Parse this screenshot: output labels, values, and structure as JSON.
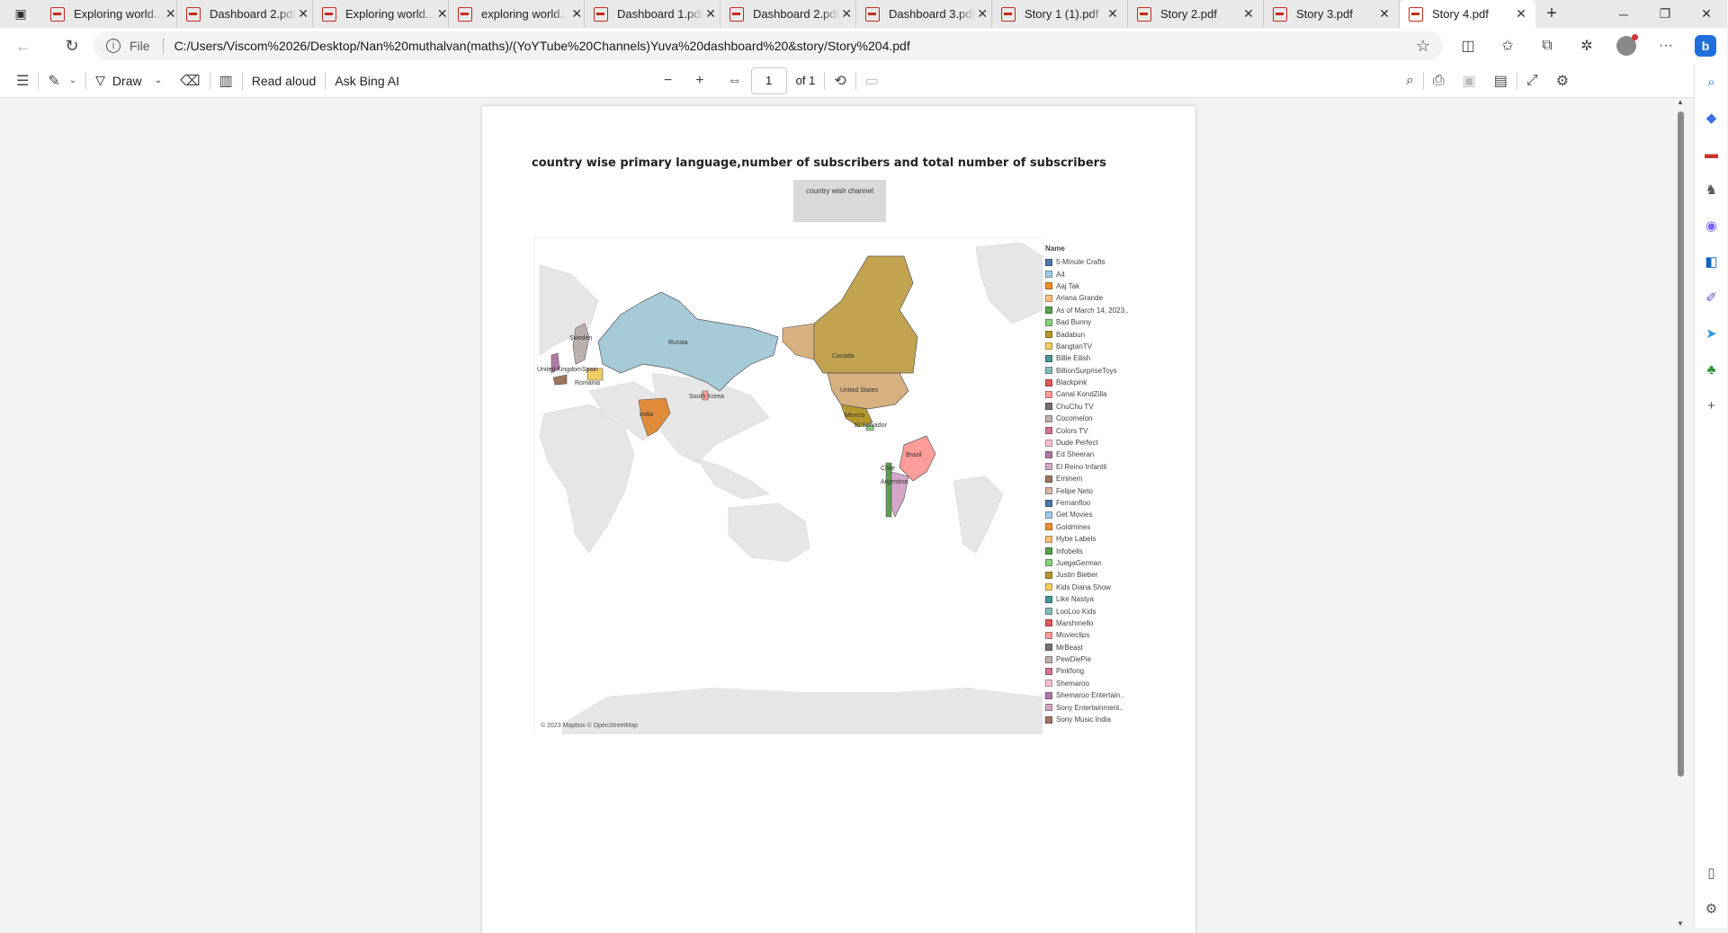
{
  "tabs": [
    {
      "title": "Exploring world..."
    },
    {
      "title": "Dashboard 2.pdf"
    },
    {
      "title": "Exploring world..."
    },
    {
      "title": "exploring world..."
    },
    {
      "title": "Dashboard 1.pdf"
    },
    {
      "title": "Dashboard 2.pdf"
    },
    {
      "title": "Dashboard 3.pdf"
    },
    {
      "title": "Story 1 (1).pdf"
    },
    {
      "title": "Story 2.pdf"
    },
    {
      "title": "Story 3.pdf"
    },
    {
      "title": "Story 4.pdf"
    }
  ],
  "address": {
    "scheme": "File",
    "url": "C:/Users/Viscom%2026/Desktop/Nan%20muthalvan(maths)/(YoYTube%20Channels)Yuva%20dashboard%20&story/Story%204.pdf"
  },
  "pdf_toolbar": {
    "draw": "Draw",
    "read_aloud": "Read aloud",
    "ask_ai": "Ask Bing AI",
    "page_current": "1",
    "page_total": "of 1"
  },
  "chart": {
    "title": "country wise primary language,number of subscribers and total number of subscribers",
    "filter_label": "country wish channel",
    "attribution": "© 2023 Mapbox © OpenStreetMap",
    "legend_title": "Name"
  },
  "chart_data": {
    "type": "map",
    "region_labels": [
      "Russia",
      "Sweden",
      "United Kingdom",
      "Spain",
      "Romania",
      "India",
      "South Korea",
      "Canada",
      "United States",
      "Mexico",
      "El Salvador",
      "Brazil",
      "Chile",
      "Argentina"
    ],
    "legend": [
      {
        "name": "5-Minute Crafts",
        "color": "#4e79a7"
      },
      {
        "name": "A4",
        "color": "#a0cbe8"
      },
      {
        "name": "Aaj Tak",
        "color": "#f28e2b"
      },
      {
        "name": "Ariana Grande",
        "color": "#ffbe7d"
      },
      {
        "name": "As of March 14, 2023..",
        "color": "#59a14f"
      },
      {
        "name": "Bad Bunny",
        "color": "#8cd17d"
      },
      {
        "name": "Badabun",
        "color": "#b6992d"
      },
      {
        "name": "BangtanTV",
        "color": "#f1ce63"
      },
      {
        "name": "Billie Eilish",
        "color": "#499894"
      },
      {
        "name": "BillionSurpriseToys",
        "color": "#86bcb6"
      },
      {
        "name": "Blackpink",
        "color": "#e15759"
      },
      {
        "name": "Canal KondZilla",
        "color": "#ff9d9a"
      },
      {
        "name": "ChuChu TV",
        "color": "#79706e"
      },
      {
        "name": "Cocomelon",
        "color": "#bab0ac"
      },
      {
        "name": "Colors TV",
        "color": "#d37295"
      },
      {
        "name": "Dude Perfect",
        "color": "#fabfd2"
      },
      {
        "name": "Ed Sheeran",
        "color": "#b07aa1"
      },
      {
        "name": "El Reino Infantil",
        "color": "#d4a6c8"
      },
      {
        "name": "Eminem",
        "color": "#9d7660"
      },
      {
        "name": "Felipe Neto",
        "color": "#d7b5a6"
      },
      {
        "name": "Fernanfloo",
        "color": "#4e79a7"
      },
      {
        "name": "Get Movies",
        "color": "#a0cbe8"
      },
      {
        "name": "Goldmines",
        "color": "#f28e2b"
      },
      {
        "name": "Hybe Labels",
        "color": "#ffbe7d"
      },
      {
        "name": "Infobells",
        "color": "#59a14f"
      },
      {
        "name": "JuegaGerman",
        "color": "#8cd17d"
      },
      {
        "name": "Justin Bieber",
        "color": "#b6992d"
      },
      {
        "name": "Kids Diana Show",
        "color": "#f1ce63"
      },
      {
        "name": "Like Nastya",
        "color": "#499894"
      },
      {
        "name": "LooLoo Kids",
        "color": "#86bcb6"
      },
      {
        "name": "Marshmello",
        "color": "#e15759"
      },
      {
        "name": "Movieclips",
        "color": "#ff9d9a"
      },
      {
        "name": "MrBeast",
        "color": "#79706e"
      },
      {
        "name": "PewDiePie",
        "color": "#bab0ac"
      },
      {
        "name": "Pinkfong",
        "color": "#d37295"
      },
      {
        "name": "Shemaroo",
        "color": "#fabfd2"
      },
      {
        "name": "Shemaroo Entertain..",
        "color": "#b07aa1"
      },
      {
        "name": "Sony Entertainment..",
        "color": "#d4a6c8"
      },
      {
        "name": "Sony Music India",
        "color": "#9d7660"
      }
    ]
  }
}
